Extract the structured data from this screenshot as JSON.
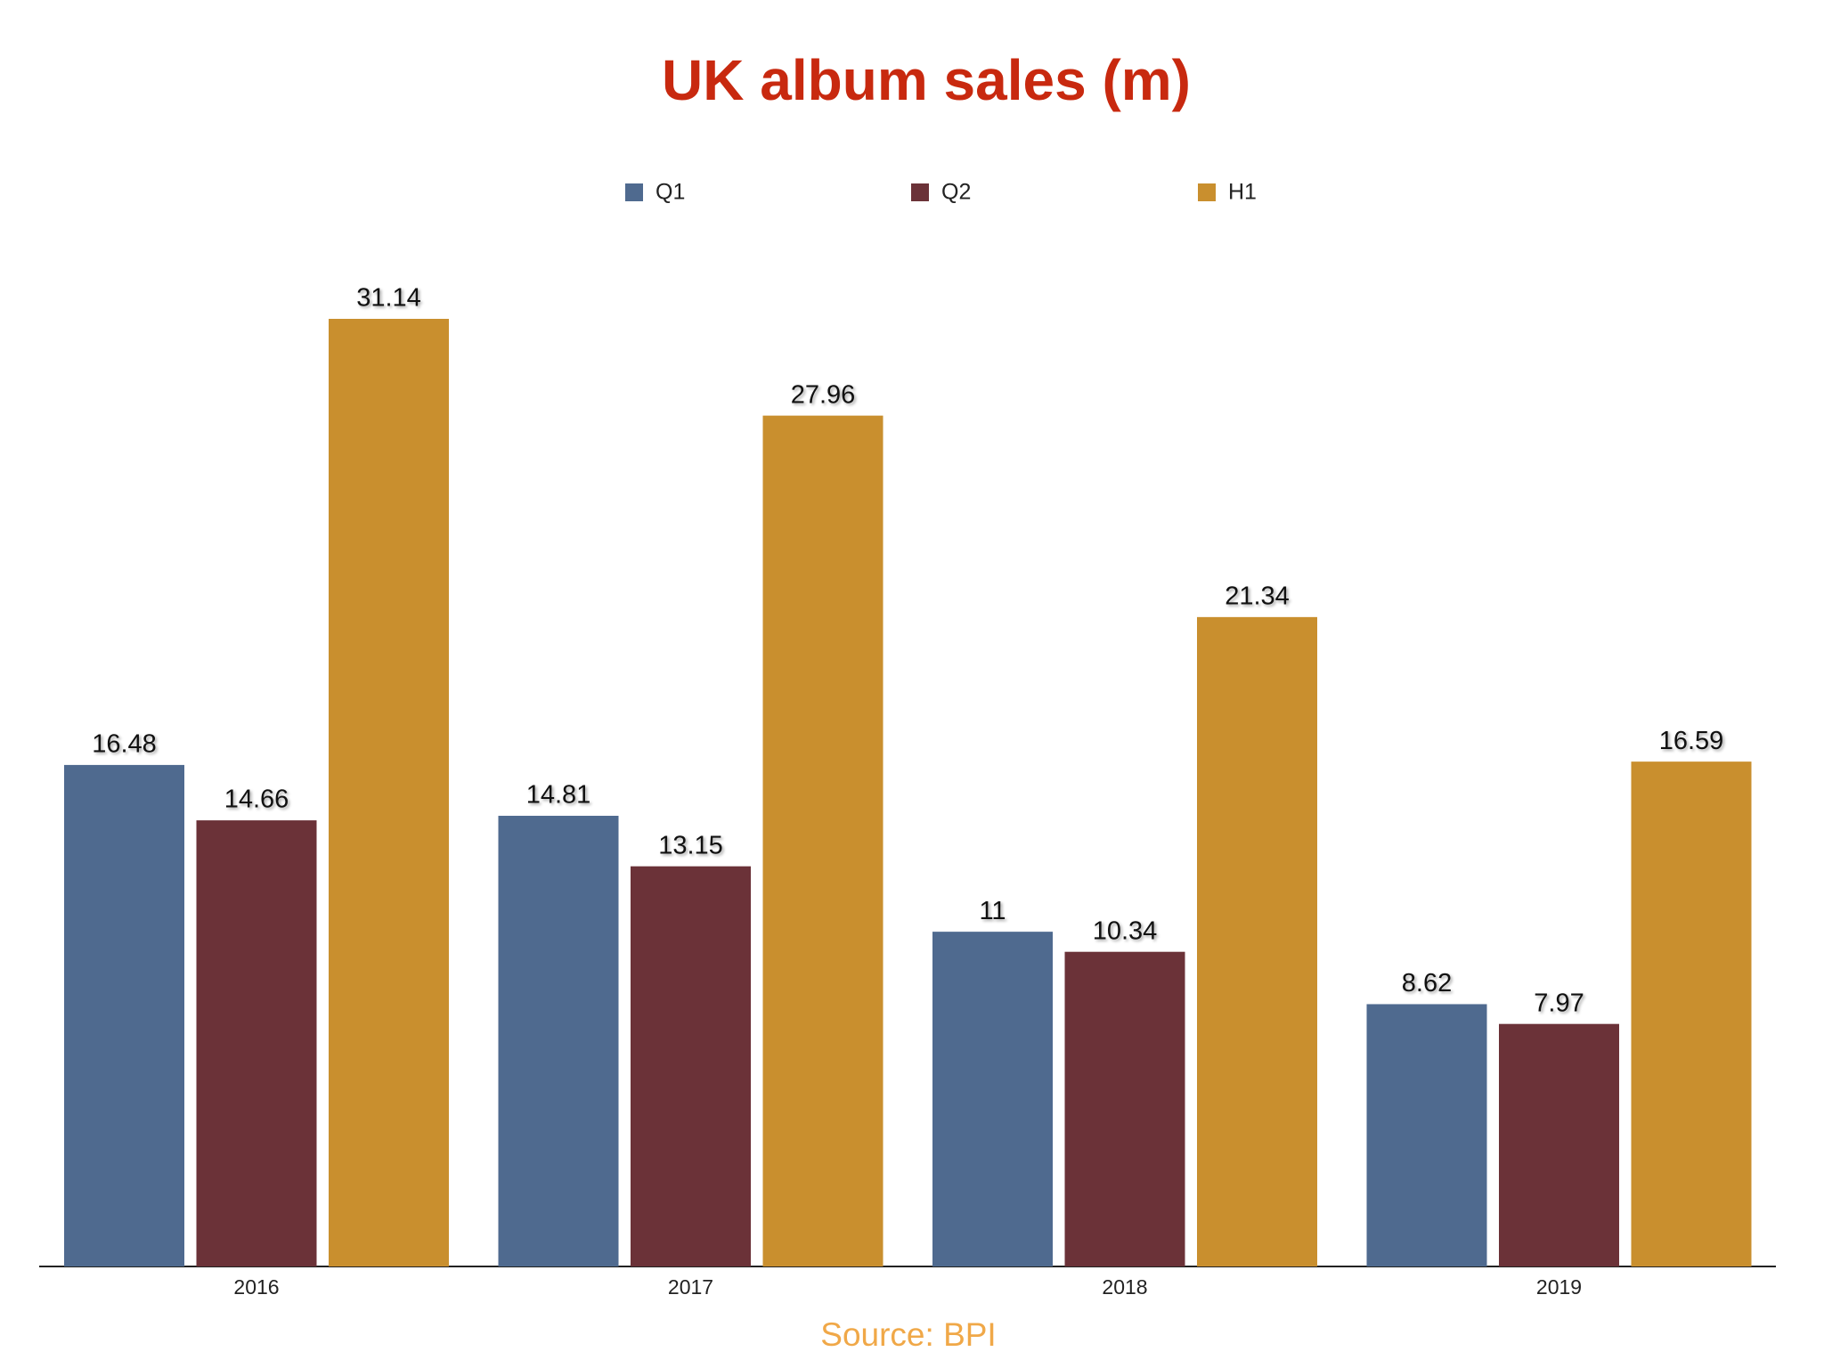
{
  "chart_data": {
    "type": "bar",
    "title": "UK album sales (m)",
    "source": "Source: BPI",
    "categories": [
      "2016",
      "2017",
      "2018",
      "2019"
    ],
    "series": [
      {
        "name": "Q1",
        "color": "#4f6a8f",
        "values": [
          16.48,
          14.81,
          11,
          8.62
        ]
      },
      {
        "name": "Q2",
        "color": "#6b3238",
        "values": [
          14.66,
          13.15,
          10.34,
          7.97
        ]
      },
      {
        "name": "H1",
        "color": "#c98f2e",
        "values": [
          31.14,
          27.96,
          21.34,
          16.59
        ]
      }
    ],
    "legend": "top"
  }
}
